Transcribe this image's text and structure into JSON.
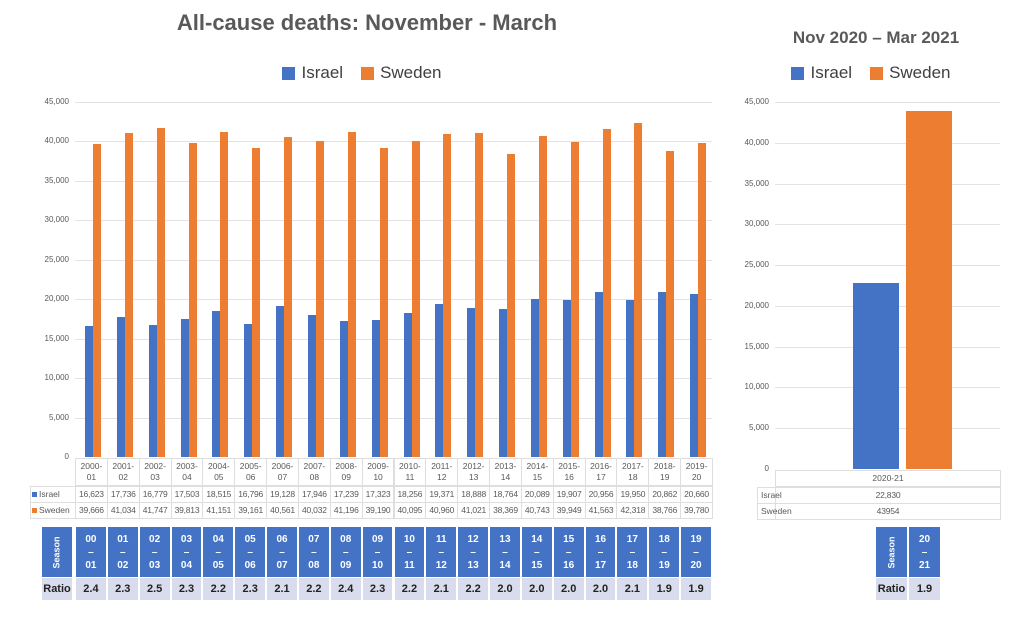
{
  "colors": {
    "israel": "#4472c4",
    "sweden": "#ed7d31",
    "season_bg": "#4472c4",
    "ratio_bg": "#d9dcec"
  },
  "chart_data": [
    {
      "type": "bar",
      "title": "All-cause deaths: November - March",
      "categories": [
        "2000-01",
        "2001-02",
        "2002-03",
        "2003-04",
        "2004-05",
        "2005-06",
        "2006-07",
        "2007-08",
        "2008-09",
        "2009-10",
        "2010-11",
        "2011-12",
        "2012-13",
        "2013-14",
        "2014-15",
        "2015-16",
        "2016-17",
        "2017-18",
        "2018-19",
        "2019-20"
      ],
      "series": [
        {
          "name": "Israel",
          "values": [
            16623,
            17736,
            16779,
            17503,
            18515,
            16796,
            19128,
            17946,
            17239,
            17323,
            18256,
            19371,
            18888,
            18764,
            20089,
            19907,
            20956,
            19950,
            20862,
            20660
          ],
          "labels": [
            "16,623",
            "17,736",
            "16,779",
            "17,503",
            "18,515",
            "16,796",
            "19,128",
            "17,946",
            "17,239",
            "17,323",
            "18,256",
            "19,371",
            "18,888",
            "18,764",
            "20,089",
            "19,907",
            "20,956",
            "19,950",
            "20,862",
            "20,660"
          ]
        },
        {
          "name": "Sweden",
          "values": [
            39666,
            41034,
            41747,
            39813,
            41151,
            39161,
            40561,
            40032,
            41196,
            39190,
            40095,
            40960,
            41021,
            38369,
            40743,
            39949,
            41563,
            42318,
            38766,
            39780
          ],
          "labels": [
            "39,666",
            "41,034",
            "41,747",
            "39,813",
            "41,151",
            "39,161",
            "40,561",
            "40,032",
            "41,196",
            "39,190",
            "40,095",
            "40,960",
            "41,021",
            "38,369",
            "40,743",
            "39,949",
            "41,563",
            "42,318",
            "38,766",
            "39,780"
          ]
        }
      ],
      "ylim": [
        0,
        45000
      ],
      "yticks": [
        "0",
        "5,000",
        "10,000",
        "15,000",
        "20,000",
        "25,000",
        "30,000",
        "35,000",
        "40,000",
        "45,000"
      ],
      "grid": true,
      "legend": "top",
      "season_label": "Season",
      "seasons": [
        [
          "00",
          "01"
        ],
        [
          "01",
          "02"
        ],
        [
          "02",
          "03"
        ],
        [
          "03",
          "04"
        ],
        [
          "04",
          "05"
        ],
        [
          "05",
          "06"
        ],
        [
          "06",
          "07"
        ],
        [
          "07",
          "08"
        ],
        [
          "08",
          "09"
        ],
        [
          "09",
          "10"
        ],
        [
          "10",
          "11"
        ],
        [
          "11",
          "12"
        ],
        [
          "12",
          "13"
        ],
        [
          "13",
          "14"
        ],
        [
          "14",
          "15"
        ],
        [
          "15",
          "16"
        ],
        [
          "16",
          "17"
        ],
        [
          "17",
          "18"
        ],
        [
          "18",
          "19"
        ],
        [
          "19",
          "20"
        ]
      ],
      "ratio_label": "Ratio",
      "ratios": [
        "2.4",
        "2.3",
        "2.5",
        "2.3",
        "2.2",
        "2.3",
        "2.1",
        "2.2",
        "2.4",
        "2.3",
        "2.2",
        "2.1",
        "2.2",
        "2.0",
        "2.0",
        "2.0",
        "2.0",
        "2.1",
        "1.9",
        "1.9"
      ]
    },
    {
      "type": "bar",
      "title": "Nov 2020 – Mar 2021",
      "categories": [
        "2020-21"
      ],
      "series": [
        {
          "name": "Israel",
          "values": [
            22830
          ],
          "labels": [
            "22,830"
          ]
        },
        {
          "name": "Sweden",
          "values": [
            43954
          ],
          "labels": [
            "43954"
          ]
        }
      ],
      "ylim": [
        0,
        45000
      ],
      "yticks": [
        "0",
        "5,000",
        "10,000",
        "15,000",
        "20,000",
        "25,000",
        "30,000",
        "35,000",
        "40,000",
        "45,000"
      ],
      "grid": true,
      "legend": "top",
      "season_label": "Season",
      "seasons": [
        [
          "20",
          "21"
        ]
      ],
      "ratio_label": "Ratio",
      "ratios": [
        "1.9"
      ]
    }
  ]
}
